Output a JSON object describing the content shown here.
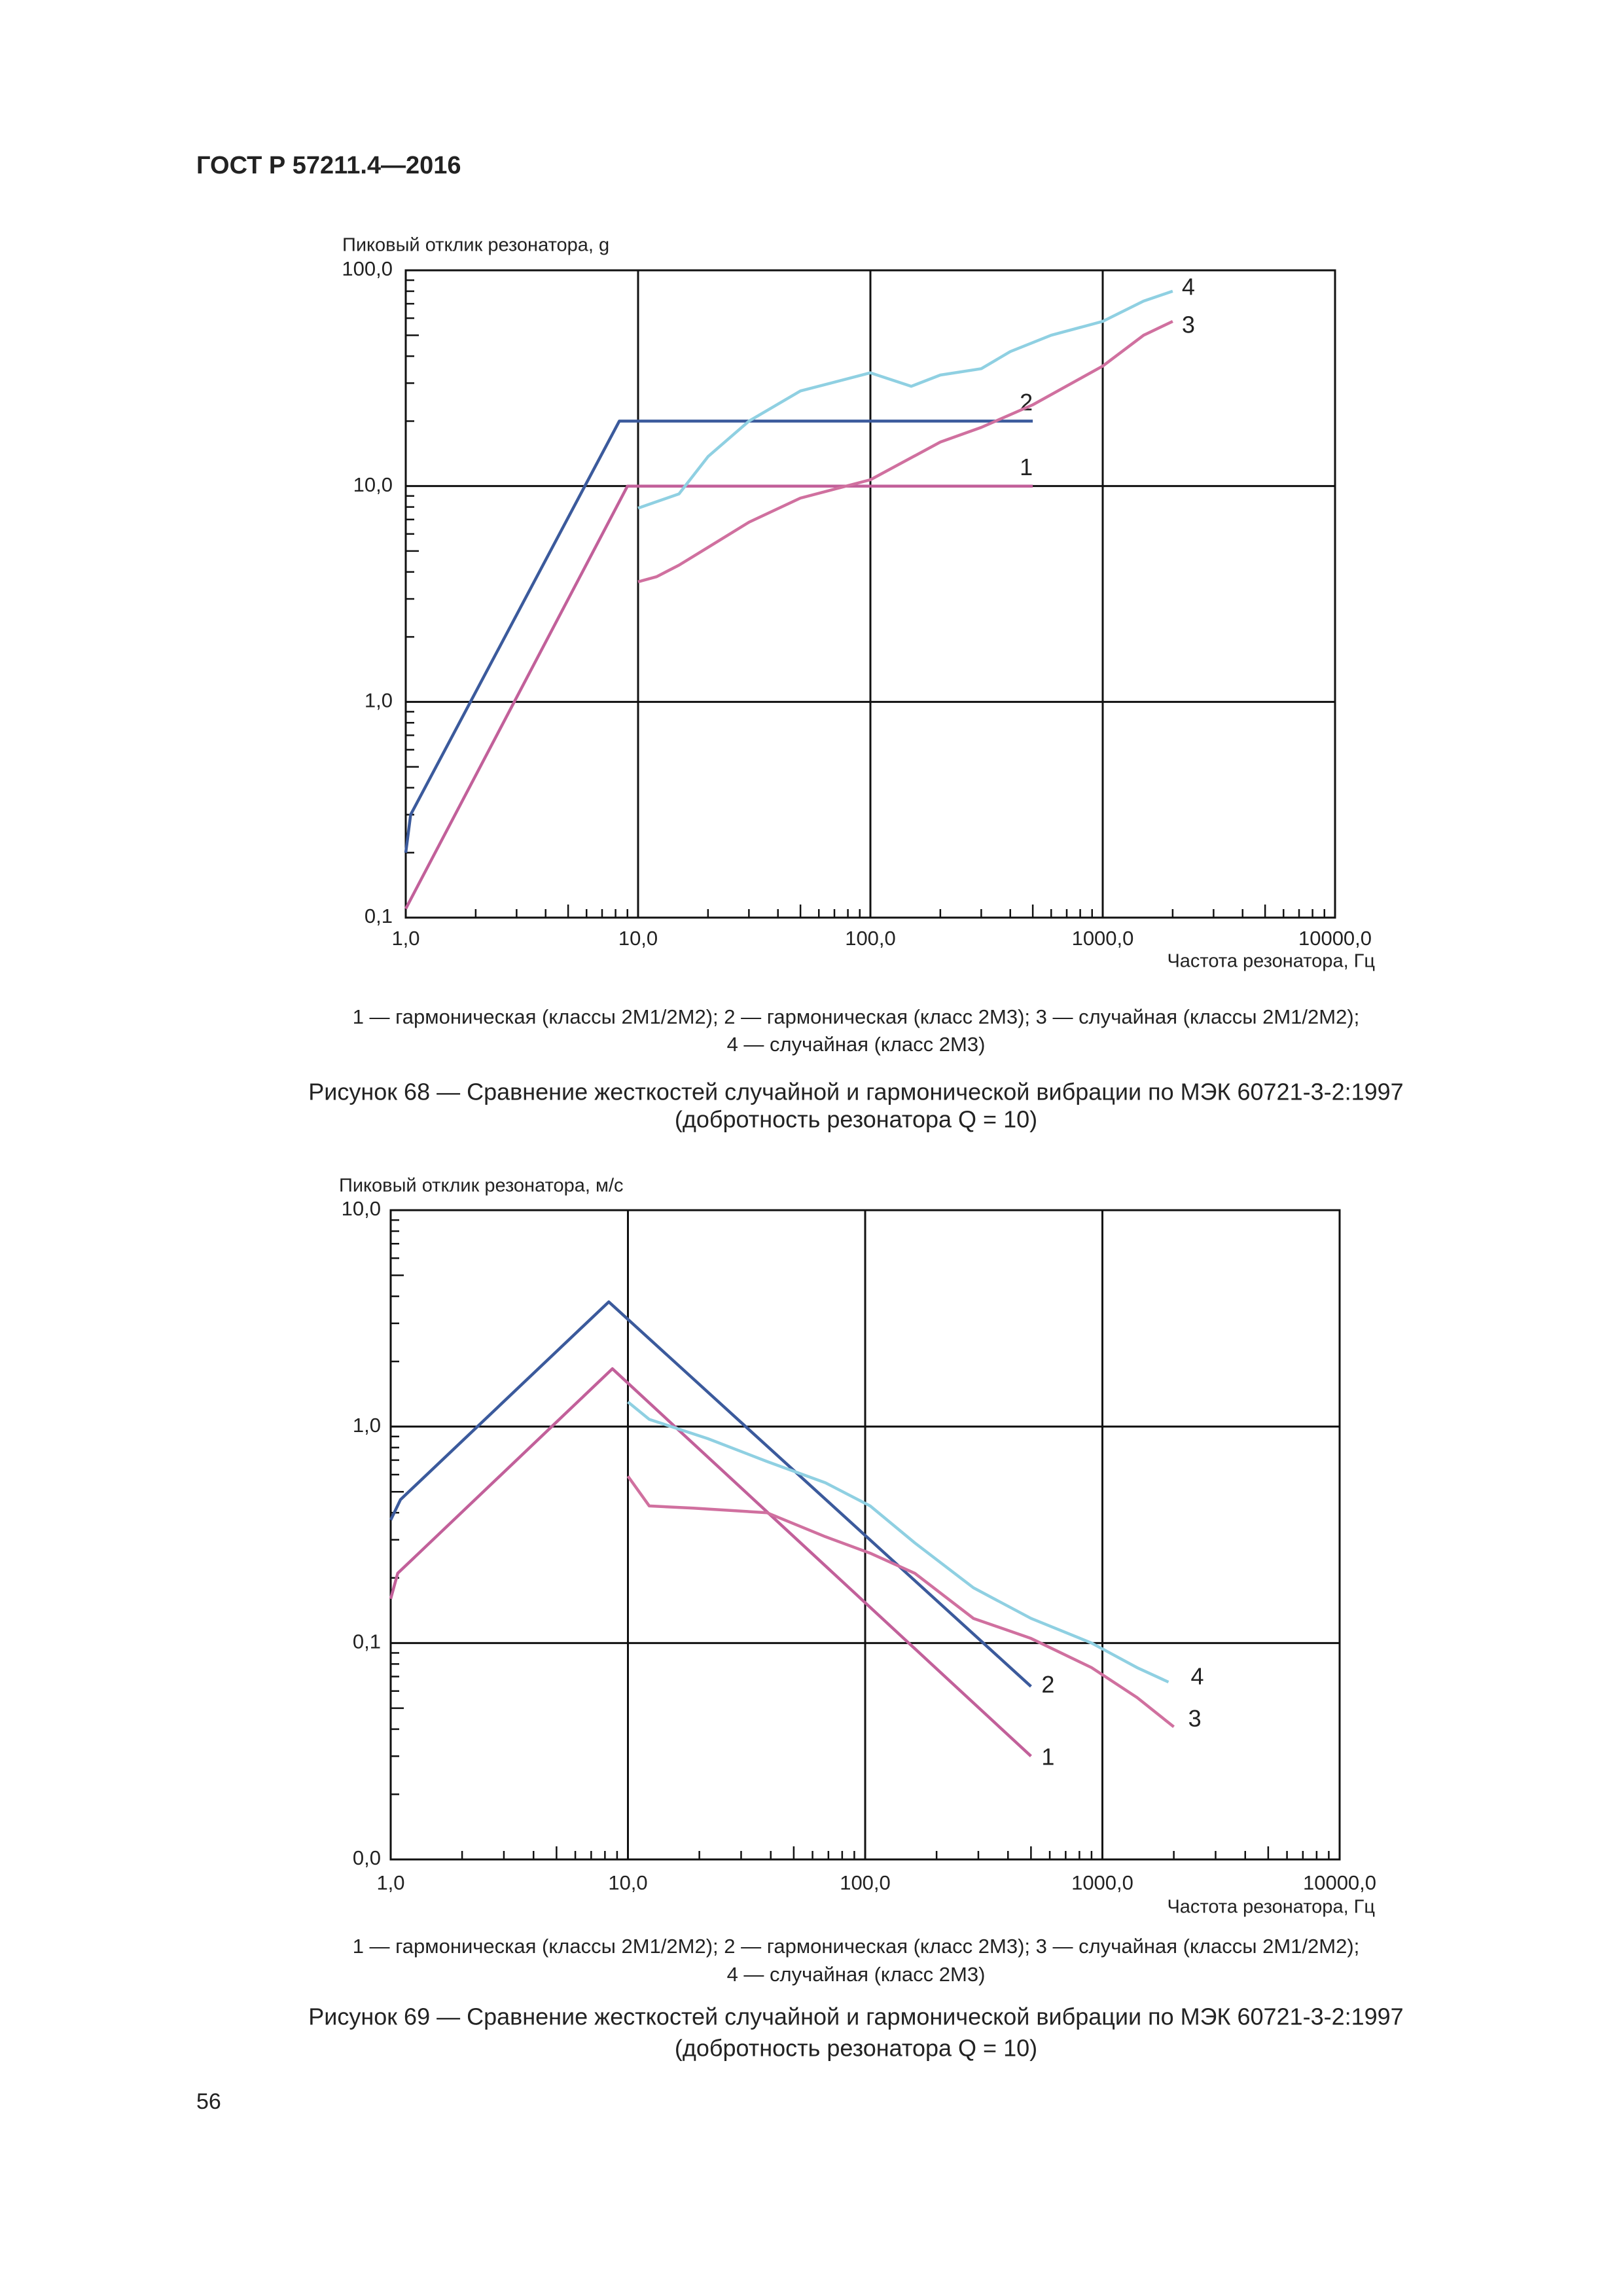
{
  "header": "ГОСТ Р 57211.4—2016",
  "page_number": "56",
  "chart_data": [
    {
      "type": "line",
      "ylabel": "Пиковый отклик резонатора, g",
      "xlabel": "Частота резонатора, Гц",
      "xscale": "log",
      "yscale": "log",
      "grid": true,
      "minor_ticks": true,
      "xlim": [
        1,
        10000
      ],
      "ylim": [
        0.1,
        100
      ],
      "xticks": [
        {
          "value": 1,
          "label": "1,0"
        },
        {
          "value": 10,
          "label": "10,0"
        },
        {
          "value": 100,
          "label": "100,0"
        },
        {
          "value": 1000,
          "label": "1000,0"
        },
        {
          "value": 10000,
          "label": "10000,0"
        }
      ],
      "yticks": [
        {
          "value": 0.1,
          "label": "0,1"
        },
        {
          "value": 1,
          "label": "1,0"
        },
        {
          "value": 10,
          "label": "10,0"
        },
        {
          "value": 100,
          "label": "100,0"
        }
      ],
      "series": [
        {
          "name": "1",
          "color": "#c2609a",
          "x": [
            1,
            9,
            500
          ],
          "values": [
            0.11,
            10,
            10
          ]
        },
        {
          "name": "2",
          "color": "#3b5a9c",
          "x": [
            1,
            1.05,
            8.3,
            500
          ],
          "values": [
            0.2,
            0.3,
            20,
            20
          ]
        },
        {
          "name": "3",
          "color": "#d0709f",
          "x": [
            10,
            12,
            15,
            20,
            30,
            50,
            100,
            200,
            300,
            500,
            1000,
            1500,
            2000
          ],
          "values": [
            3.6,
            3.8,
            4.3,
            5.2,
            6.8,
            8.8,
            10.7,
            16,
            18.7,
            23.8,
            36,
            50,
            58
          ]
        },
        {
          "name": "4",
          "color": "#8fd0e2",
          "x": [
            10,
            15,
            20,
            30,
            50,
            100,
            150,
            200,
            300,
            400,
            600,
            1000,
            1500,
            2000
          ],
          "values": [
            7.9,
            9.2,
            13.7,
            20,
            27.6,
            33.5,
            29,
            32.7,
            35,
            42,
            50,
            58,
            72,
            80
          ]
        }
      ],
      "notes": [
        "1 — гармоническая (классы 2М1/2М2); 2 — гармоническая (класс 2М3); 3 — случайная (классы 2М1/2М2);",
        "4 — случайная (класс 2М3)"
      ],
      "caption": [
        "Рисунок 68 — Сравнение жесткостей случайной и гармонической вибрации по МЭК 60721-3-2:1997",
        "(добротность резонатора Q = 10)"
      ]
    },
    {
      "type": "line",
      "ylabel": "Пиковый отклик резонатора, м/с",
      "xlabel": "Частота резонатора, Гц",
      "xscale": "log",
      "yscale": "log",
      "grid": true,
      "minor_ticks": true,
      "xlim": [
        1,
        10000
      ],
      "ylim": [
        0.01,
        10
      ],
      "xticks": [
        {
          "value": 1,
          "label": "1,0"
        },
        {
          "value": 10,
          "label": "10,0"
        },
        {
          "value": 100,
          "label": "100,0"
        },
        {
          "value": 1000,
          "label": "1000,0"
        },
        {
          "value": 10000,
          "label": "10000,0"
        }
      ],
      "yticks": [
        {
          "value": 0.01,
          "label": "0,0"
        },
        {
          "value": 0.1,
          "label": "0,1"
        },
        {
          "value": 1,
          "label": "1,0"
        },
        {
          "value": 10,
          "label": "10,0"
        }
      ],
      "series": [
        {
          "name": "1",
          "color": "#c2609a",
          "x": [
            1,
            1.07,
            8.6,
            500
          ],
          "values": [
            0.16,
            0.21,
            1.85,
            0.03
          ]
        },
        {
          "name": "2",
          "color": "#3b5a9c",
          "x": [
            1,
            1.1,
            8.3,
            500
          ],
          "values": [
            0.37,
            0.46,
            3.77,
            0.063
          ]
        },
        {
          "name": "3",
          "color": "#d0709f",
          "x": [
            10,
            12.3,
            18.9,
            38.6,
            68,
            105,
            162,
            286,
            500,
            900,
            1400,
            2000
          ],
          "values": [
            0.59,
            0.43,
            0.42,
            0.4,
            0.31,
            0.26,
            0.21,
            0.13,
            0.105,
            0.077,
            0.056,
            0.041
          ]
        },
        {
          "name": "4",
          "color": "#8fd0e2",
          "x": [
            10,
            12.3,
            21.7,
            38.6,
            68,
            105,
            162,
            286,
            500,
            900,
            1400,
            1900
          ],
          "values": [
            1.3,
            1.08,
            0.88,
            0.69,
            0.55,
            0.43,
            0.29,
            0.18,
            0.13,
            0.1,
            0.077,
            0.066
          ]
        }
      ],
      "notes": [
        "1 — гармоническая (классы 2М1/2М2); 2 — гармоническая (класс 2М3); 3 — случайная (классы 2М1/2М2);",
        "4 — случайная (класс 2М3)"
      ],
      "caption": [
        "Рисунок 69 — Сравнение жесткостей случайной и гармонической вибрации по МЭК 60721-3-2:1997",
        "(добротность резонатора Q = 10)"
      ]
    }
  ]
}
